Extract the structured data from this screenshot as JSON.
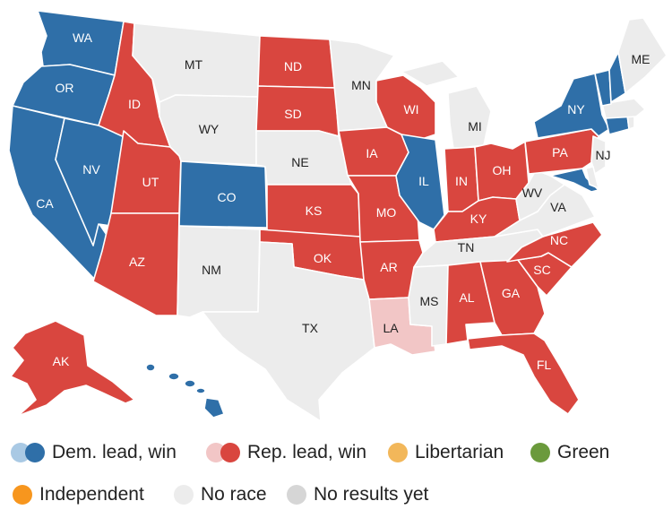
{
  "colors": {
    "dem_win": "#2f6fa8",
    "dem_lead": "#a9c9e4",
    "rep_win": "#d9463f",
    "rep_lead": "#f2c6c6",
    "libertarian": "#f2b75a",
    "green": "#6b9a3c",
    "independent": "#f7961e",
    "no_race": "#ececec",
    "no_results": "#d6d6d6"
  },
  "states": {
    "WA": {
      "label": "WA",
      "status": "dem_win"
    },
    "OR": {
      "label": "OR",
      "status": "dem_win"
    },
    "CA": {
      "label": "CA",
      "status": "dem_win"
    },
    "NV": {
      "label": "NV",
      "status": "dem_win"
    },
    "ID": {
      "label": "ID",
      "status": "rep_win"
    },
    "UT": {
      "label": "UT",
      "status": "rep_win"
    },
    "AZ": {
      "label": "AZ",
      "status": "rep_win"
    },
    "MT": {
      "label": "MT",
      "status": "no_race"
    },
    "WY": {
      "label": "WY",
      "status": "no_race"
    },
    "CO": {
      "label": "CO",
      "status": "dem_win"
    },
    "NM": {
      "label": "NM",
      "status": "no_race"
    },
    "ND": {
      "label": "ND",
      "status": "rep_win"
    },
    "SD": {
      "label": "SD",
      "status": "rep_win"
    },
    "NE": {
      "label": "NE",
      "status": "no_race"
    },
    "KS": {
      "label": "KS",
      "status": "rep_win"
    },
    "OK": {
      "label": "OK",
      "status": "rep_win"
    },
    "TX": {
      "label": "TX",
      "status": "no_race"
    },
    "MN": {
      "label": "MN",
      "status": "no_race"
    },
    "IA": {
      "label": "IA",
      "status": "rep_win"
    },
    "MO": {
      "label": "MO",
      "status": "rep_win"
    },
    "AR": {
      "label": "AR",
      "status": "rep_win"
    },
    "LA": {
      "label": "LA",
      "status": "rep_lead"
    },
    "WI": {
      "label": "WI",
      "status": "rep_win"
    },
    "IL": {
      "label": "IL",
      "status": "dem_win"
    },
    "MI": {
      "label": "MI",
      "status": "no_race"
    },
    "IN": {
      "label": "IN",
      "status": "rep_win"
    },
    "OH": {
      "label": "OH",
      "status": "rep_win"
    },
    "KY": {
      "label": "KY",
      "status": "rep_win"
    },
    "TN": {
      "label": "TN",
      "status": "no_race"
    },
    "MS": {
      "label": "MS",
      "status": "no_race"
    },
    "AL": {
      "label": "AL",
      "status": "rep_win"
    },
    "GA": {
      "label": "GA",
      "status": "rep_win"
    },
    "FL": {
      "label": "FL",
      "status": "rep_win"
    },
    "SC": {
      "label": "SC",
      "status": "rep_win"
    },
    "NC": {
      "label": "NC",
      "status": "rep_win"
    },
    "VA": {
      "label": "VA",
      "status": "no_race"
    },
    "WV": {
      "label": "WV",
      "status": "no_race"
    },
    "PA": {
      "label": "PA",
      "status": "rep_win"
    },
    "NY": {
      "label": "NY",
      "status": "dem_win"
    },
    "NJ": {
      "label": "NJ",
      "status": "no_race"
    },
    "MD": {
      "label": "",
      "status": "dem_win"
    },
    "DE": {
      "label": "",
      "status": "no_race"
    },
    "CT": {
      "label": "",
      "status": "dem_win"
    },
    "RI": {
      "label": "",
      "status": "no_race"
    },
    "MA": {
      "label": "",
      "status": "no_race"
    },
    "VT": {
      "label": "",
      "status": "dem_win"
    },
    "NH": {
      "label": "",
      "status": "dem_win"
    },
    "ME": {
      "label": "ME",
      "status": "no_race"
    },
    "AK": {
      "label": "AK",
      "status": "rep_win"
    },
    "HI": {
      "label": "",
      "status": "dem_win"
    }
  },
  "legend": {
    "dem": "Dem. lead, win",
    "rep": "Rep. lead, win",
    "libertarian": "Libertarian",
    "green": "Green",
    "independent": "Independent",
    "no_race": "No race",
    "no_results": "No results yet"
  }
}
